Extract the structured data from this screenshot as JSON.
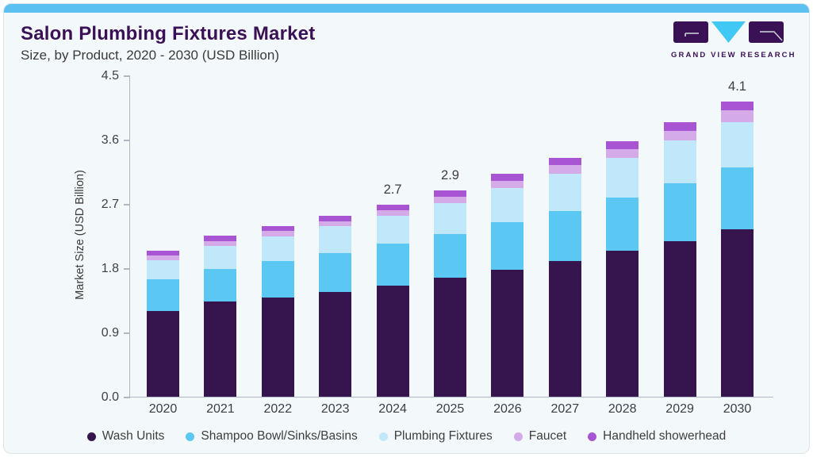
{
  "header": {
    "title": "Salon Plumbing Fixtures Market",
    "subtitle": "Size, by Product, 2020 - 2030 (USD Billion)"
  },
  "logo": {
    "text": "GRAND VIEW RESEARCH",
    "block_color": "#3b1156",
    "triangle_color": "#41c8f4"
  },
  "colors": {
    "accent_top_bar": "#5cc1ee",
    "card_background": "#f3f8fb",
    "title_text": "#3a1154",
    "axis_line": "#aeb8c2",
    "tick_text": "#3f414a",
    "legend_text": "#3e3e3e"
  },
  "chart_data": {
    "type": "bar",
    "stacked": true,
    "title": "Salon Plumbing Fixtures Market",
    "subtitle": "Size, by Product, 2020 - 2030 (USD Billion)",
    "xlabel": "",
    "ylabel": "Market Size (USD Billion)",
    "ylim": [
      0,
      4.5
    ],
    "yticks": [
      0.0,
      0.9,
      1.8,
      2.7,
      3.6,
      4.5
    ],
    "grid": false,
    "legend_position": "bottom",
    "categories": [
      "2020",
      "2021",
      "2022",
      "2023",
      "2024",
      "2025",
      "2026",
      "2027",
      "2028",
      "2029",
      "2030"
    ],
    "series": [
      {
        "name": "Wash Units",
        "color": "#36154e",
        "values": [
          1.2,
          1.33,
          1.39,
          1.47,
          1.56,
          1.67,
          1.78,
          1.9,
          2.04,
          2.18,
          2.34
        ]
      },
      {
        "name": "Shampoo Bowl/Sinks/Basins",
        "color": "#5ac8f3",
        "values": [
          0.44,
          0.46,
          0.51,
          0.54,
          0.58,
          0.61,
          0.66,
          0.7,
          0.75,
          0.81,
          0.87
        ]
      },
      {
        "name": "Plumbing Fixtures",
        "color": "#c0e8fa",
        "values": [
          0.27,
          0.32,
          0.35,
          0.38,
          0.39,
          0.43,
          0.48,
          0.52,
          0.55,
          0.6,
          0.64
        ]
      },
      {
        "name": "Faucet",
        "color": "#d4aae9",
        "values": [
          0.07,
          0.07,
          0.07,
          0.07,
          0.08,
          0.09,
          0.1,
          0.13,
          0.13,
          0.13,
          0.16
        ]
      },
      {
        "name": "Handheld showerhead",
        "color": "#a855d4",
        "values": [
          0.07,
          0.08,
          0.07,
          0.07,
          0.08,
          0.09,
          0.1,
          0.1,
          0.11,
          0.12,
          0.12
        ]
      }
    ],
    "total_labels": {
      "2024": "2.7",
      "2025": "2.9",
      "2030": "4.1"
    }
  }
}
